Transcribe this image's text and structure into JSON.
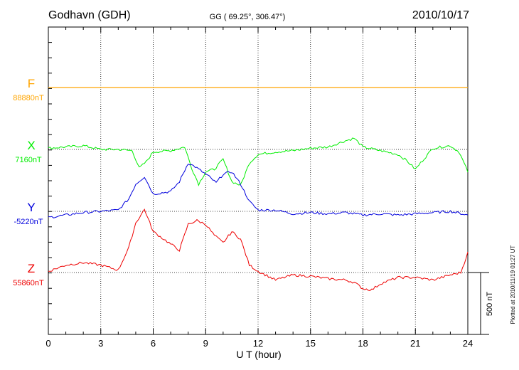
{
  "header": {
    "station": "Godhavn (GDH)",
    "coords": "GG ( 69.25°, 306.47°)",
    "date": "2010/10/17"
  },
  "footer": {
    "plotted": "Plotted at 2010/11/19 01:27  UT",
    "scale_label": "500 nT"
  },
  "chart_data": {
    "type": "line",
    "title": "Godhavn (GDH)",
    "xlabel": "U T (hour)",
    "ylabel": "",
    "xlim": [
      0,
      24
    ],
    "x_ticks": [
      "0",
      "3",
      "6",
      "9",
      "12",
      "15",
      "18",
      "21",
      "24"
    ],
    "grid": true,
    "scale_bar_nT": 500,
    "series": [
      {
        "name": "F",
        "baseline_label": "88880nT",
        "color": "#ffa500",
        "x": [
          0,
          24
        ],
        "values": [
          0,
          0
        ]
      },
      {
        "name": "X",
        "baseline_label": "7160nT",
        "color": "#00ee00",
        "x": [
          0,
          1,
          2,
          3,
          4,
          4.8,
          5.2,
          5.6,
          6,
          7,
          7.8,
          8.2,
          8.6,
          9,
          9.5,
          10,
          10.5,
          11,
          11.5,
          12,
          13,
          14,
          15,
          16,
          17,
          17.5,
          18,
          19,
          20,
          20.5,
          21,
          22,
          23,
          23.5,
          24
        ],
        "values": [
          10,
          20,
          30,
          0,
          0,
          -10,
          -150,
          -100,
          -20,
          -10,
          20,
          -150,
          -280,
          -180,
          -160,
          -80,
          -260,
          -290,
          -110,
          -40,
          -20,
          -10,
          10,
          20,
          70,
          90,
          20,
          -10,
          -40,
          -90,
          -160,
          10,
          30,
          -20,
          -180
        ]
      },
      {
        "name": "Y",
        "baseline_label": "-5220nT",
        "color": "#0000dd",
        "x": [
          0,
          1,
          2,
          3,
          4,
          4.6,
          5,
          5.5,
          6,
          7,
          7.5,
          8,
          8.4,
          8.8,
          9.2,
          9.6,
          10,
          10.5,
          11,
          11.5,
          12,
          13,
          14,
          15,
          16,
          17,
          18,
          19,
          20,
          21,
          22,
          23,
          24
        ],
        "values": [
          -50,
          -30,
          -10,
          0,
          10,
          100,
          220,
          280,
          140,
          160,
          240,
          390,
          360,
          320,
          280,
          230,
          300,
          320,
          220,
          80,
          10,
          10,
          -20,
          -10,
          -20,
          -10,
          -30,
          -20,
          -30,
          -20,
          -10,
          0,
          -30
        ]
      },
      {
        "name": "Z",
        "baseline_label": "55860nT",
        "color": "#ee0000",
        "x": [
          0,
          1,
          2,
          3,
          4,
          4.6,
          5,
          5.5,
          6,
          6.5,
          7,
          7.5,
          8,
          8.5,
          9,
          9.5,
          10,
          10.5,
          11,
          11.5,
          12,
          13,
          14,
          15,
          16,
          17,
          17.5,
          18,
          18.5,
          19,
          20,
          21,
          22,
          23,
          23.6,
          24
        ],
        "values": [
          10,
          60,
          80,
          60,
          20,
          200,
          400,
          510,
          330,
          280,
          230,
          180,
          390,
          420,
          390,
          300,
          240,
          330,
          270,
          60,
          10,
          -60,
          -20,
          -30,
          -50,
          -60,
          -80,
          -130,
          -140,
          -90,
          -40,
          -40,
          -60,
          -20,
          0,
          160
        ]
      }
    ]
  }
}
